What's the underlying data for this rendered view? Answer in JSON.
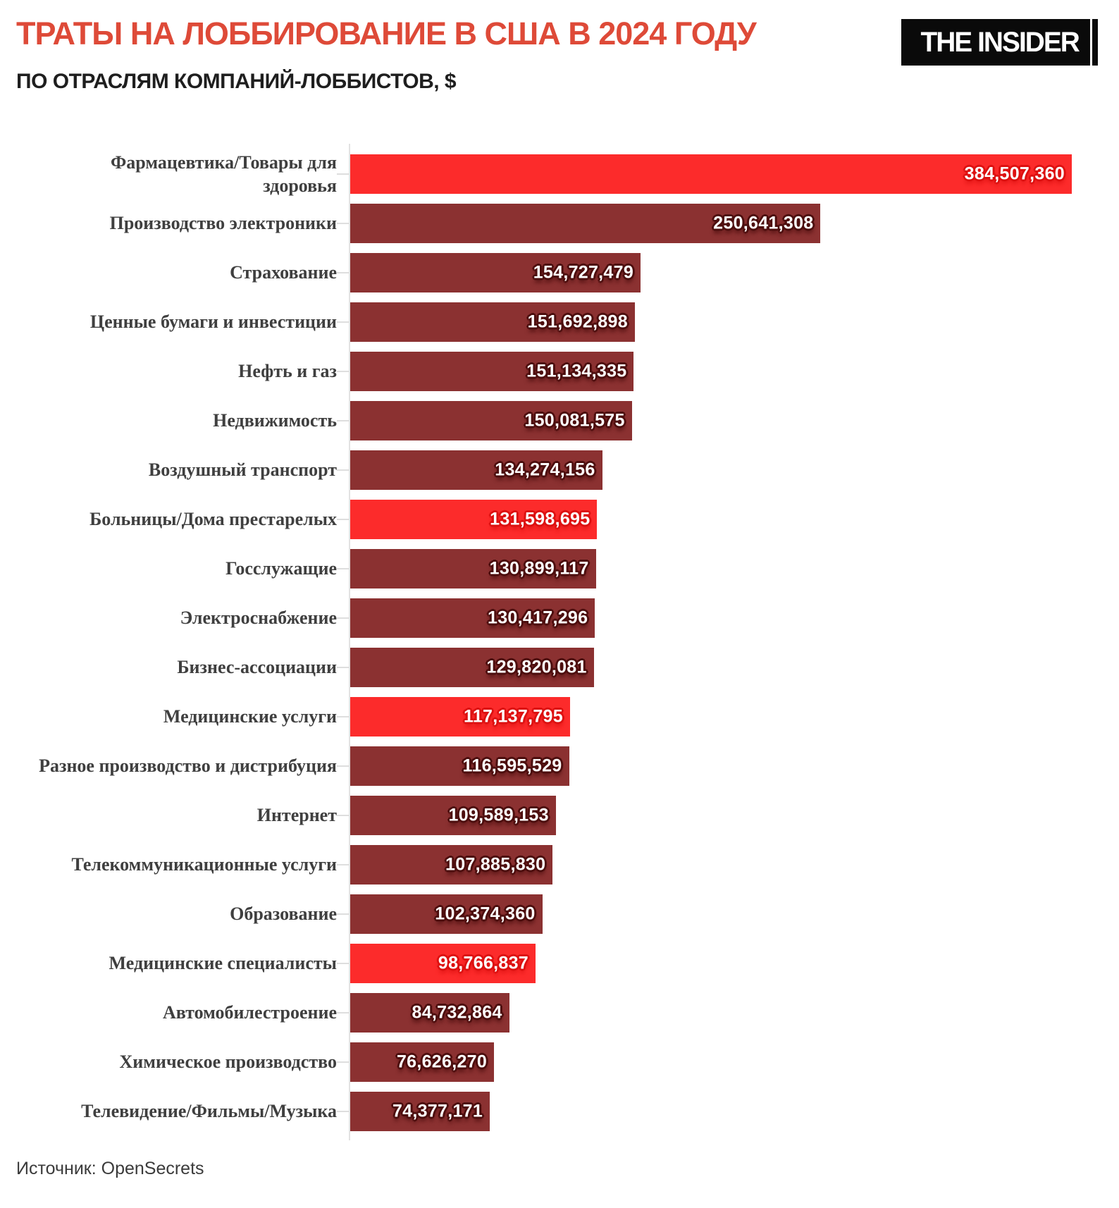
{
  "header": {
    "title": "ТРАТЫ НА ЛОББИРОВАНИЕ В США В 2024 ГОДУ",
    "subtitle": "ПО ОТРАСЛЯМ КОМПАНИЙ-ЛОББИСТОВ, $",
    "logo_text": "THE INSIDER"
  },
  "source": {
    "label": "Источник: OpenSecrets"
  },
  "colors": {
    "title_red": "#de4a38",
    "logo_bg": "#0a0a0a",
    "logo_text": "#ffffff",
    "bar_default": "#8b3131",
    "bar_highlight": "#fc2b2b",
    "halo_default": "#4d0e0e",
    "halo_highlight": "#dd1111",
    "label_gray": "#3f3f3f"
  },
  "chart_data": {
    "type": "bar",
    "orientation": "horizontal",
    "title": "ТРАТЫ НА ЛОББИРОВАНИЕ В США В 2024 ГОДУ",
    "subtitle": "ПО ОТРАСЛЯМ КОМПАНИЙ-ЛОББИСТОВ, $",
    "unit": "$",
    "source": "OpenSecrets",
    "grid": false,
    "legend": false,
    "xlim": [
      0,
      384507360
    ],
    "categories": [
      "Фармацевтика/Товары для\nздоровья",
      "Производство электроники",
      "Страхование",
      "Ценные бумаги и инвестиции",
      "Нефть и газ",
      "Недвижимость",
      "Воздушный транспорт",
      "Больницы/Дома престарелых",
      "Госслужащие",
      "Электроснабжение",
      "Бизнес-ассоциации",
      "Медицинские услуги",
      "Разное производство и дистрибуция",
      "Интернет",
      "Телекоммуникационные услуги",
      "Образование",
      "Медицинские специалисты",
      "Автомобилестроение",
      "Химическое производство",
      "Телевидение/Фильмы/Музыка"
    ],
    "values": [
      384507360,
      250641308,
      154727479,
      151692898,
      151134335,
      150081575,
      134274156,
      131598695,
      130899117,
      130417296,
      129820081,
      117137795,
      116595529,
      109589153,
      107885830,
      102374360,
      98766837,
      84732864,
      76626270,
      74377171
    ],
    "value_labels": [
      "384,507,360",
      "250,641,308",
      "154,727,479",
      "151,692,898",
      "151,134,335",
      "150,081,575",
      "134,274,156",
      "131,598,695",
      "130,899,117",
      "130,417,296",
      "129,820,081",
      "117,137,795",
      "116,595,529",
      "109,589,153",
      "107,885,830",
      "102,374,360",
      "98,766,837",
      "84,732,864",
      "76,626,270",
      "74,377,171"
    ],
    "highlighted": [
      true,
      false,
      false,
      false,
      false,
      false,
      false,
      true,
      false,
      false,
      false,
      true,
      false,
      false,
      false,
      false,
      true,
      false,
      false,
      false
    ]
  }
}
